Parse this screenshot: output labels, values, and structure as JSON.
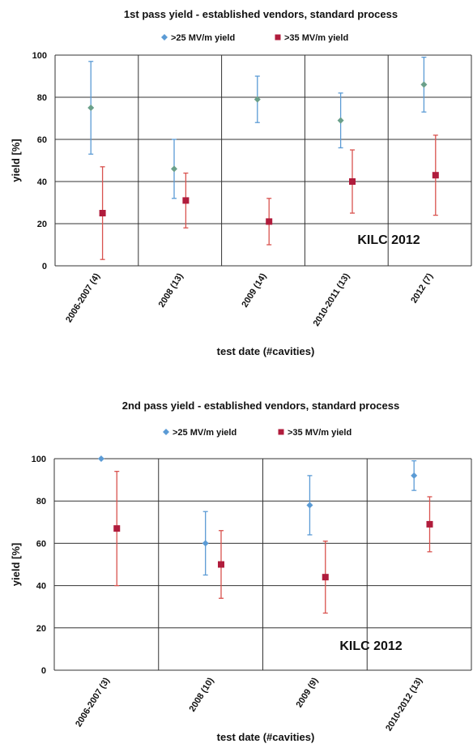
{
  "chart_data": [
    {
      "type": "scatter",
      "title": "1st pass yield - established vendors, standard process",
      "xlabel": "test date (#cavities)",
      "ylabel": "yield [%]",
      "ylim": [
        0,
        100
      ],
      "yticks": [
        "0",
        "20",
        "40",
        "60",
        "80",
        "100"
      ],
      "categories": [
        "2006-2007 (4)",
        "2008 (13)",
        "2009 (14)",
        "2010-2011 (13)",
        "2012 (7)"
      ],
      "grid": true,
      "legend_position": "top",
      "annotation": "KILC 2012",
      "series": [
        {
          "name": ">25 MV/m yield",
          "color": "#5b9bd5",
          "marker_color": "#6aa08a",
          "marker": "diamond",
          "values": [
            75,
            46,
            79,
            69,
            86
          ],
          "err_low": [
            53,
            32,
            68,
            56,
            73
          ],
          "err_high": [
            97,
            60,
            90,
            82,
            99
          ]
        },
        {
          "name": ">35 MV/m yield",
          "color": "#d9534f",
          "marker_color": "#b01c3c",
          "marker": "square",
          "values": [
            25,
            31,
            21,
            40,
            43
          ],
          "err_low": [
            3,
            18,
            10,
            25,
            24
          ],
          "err_high": [
            47,
            44,
            32,
            55,
            62
          ]
        }
      ]
    },
    {
      "type": "scatter",
      "title": "2nd pass yield - established vendors, standard process",
      "xlabel": "test date (#cavities)",
      "ylabel": "yield [%]",
      "ylim": [
        0,
        100
      ],
      "yticks": [
        "0",
        "20",
        "40",
        "60",
        "80",
        "100"
      ],
      "categories": [
        "2006-2007 (3)",
        "2008 (10)",
        "2009 (9)",
        "2010-2012 (13)"
      ],
      "grid": true,
      "legend_position": "top",
      "annotation": "KILC 2012",
      "series": [
        {
          "name": ">25 MV/m yield",
          "color": "#5b9bd5",
          "marker_color": "#5b9bd5",
          "marker": "diamond",
          "values": [
            100,
            60,
            78,
            92
          ],
          "err_low": [
            100,
            45,
            64,
            85
          ],
          "err_high": [
            100,
            75,
            92,
            99
          ]
        },
        {
          "name": ">35 MV/m yield",
          "color": "#d9534f",
          "marker_color": "#b01c3c",
          "marker": "square",
          "values": [
            67,
            50,
            44,
            69
          ],
          "err_low": [
            40,
            34,
            27,
            56
          ],
          "err_high": [
            94,
            66,
            61,
            82
          ]
        }
      ]
    }
  ]
}
